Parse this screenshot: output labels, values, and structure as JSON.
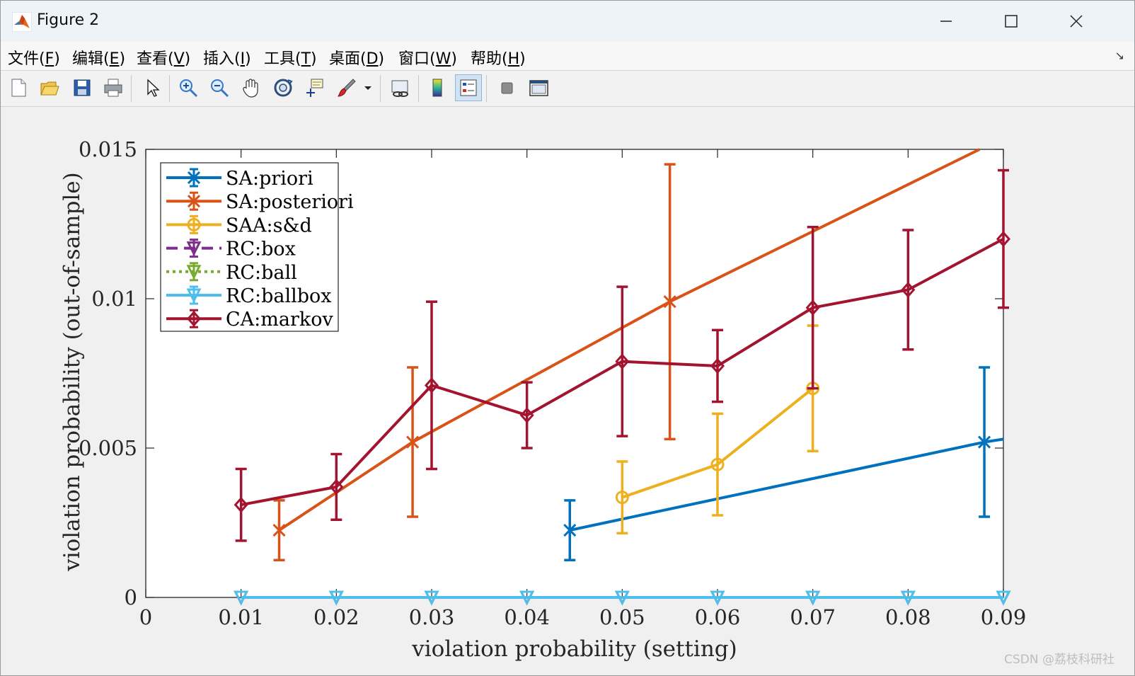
{
  "window": {
    "title": "Figure 2"
  },
  "menu": [
    {
      "label": "文件(",
      "key": "F",
      "end": ")"
    },
    {
      "label": "编辑(",
      "key": "E",
      "end": ")"
    },
    {
      "label": "查看(",
      "key": "V",
      "end": ")"
    },
    {
      "label": "插入(",
      "key": "I",
      "end": ")"
    },
    {
      "label": "工具(",
      "key": "T",
      "end": ")"
    },
    {
      "label": "桌面(",
      "key": "D",
      "end": ")"
    },
    {
      "label": "窗口(",
      "key": "W",
      "end": ")"
    },
    {
      "label": "帮助(",
      "key": "H",
      "end": ")"
    }
  ],
  "toolbar": {
    "icons": [
      "new-figure-icon",
      "open-file-icon",
      "save-icon",
      "print-icon",
      "select-arrow-icon",
      "zoom-in-icon",
      "zoom-out-icon",
      "pan-hand-icon",
      "rotate-3d-icon",
      "data-cursor-icon",
      "brush-icon",
      "brush-dropdown-icon",
      "link-plot-icon",
      "colorbar-icon",
      "legend-icon",
      "hide-plot-tools-icon",
      "show-plot-tools-icon"
    ]
  },
  "chart_data": {
    "type": "line",
    "xlabel": "violation probability (setting)",
    "ylabel": "violation probability (out-of-sample)",
    "xlim": [
      0,
      0.09
    ],
    "ylim": [
      0,
      0.015
    ],
    "xticks": [
      "0",
      "0.01",
      "0.02",
      "0.03",
      "0.04",
      "0.05",
      "0.06",
      "0.07",
      "0.08",
      "0.09"
    ],
    "yticks": [
      "0",
      "0.005",
      "0.01",
      "0.015"
    ],
    "legend_position": "top-left",
    "series": [
      {
        "name": "SA:priori",
        "color": "#0072BD",
        "marker": "x",
        "dash": "solid",
        "x": [
          0.0445,
          0.088,
          0.09
        ],
        "y": [
          0.00225,
          0.0052,
          0.0053
        ],
        "err": [
          0.001,
          0.0025,
          null
        ]
      },
      {
        "name": "SA:posteriori",
        "color": "#D95319",
        "marker": "x",
        "dash": "solid",
        "x": [
          0.014,
          0.028,
          0.055,
          0.0875
        ],
        "y": [
          0.00225,
          0.0052,
          0.0099,
          0.015
        ],
        "err": [
          0.001,
          0.0025,
          0.0046,
          null
        ]
      },
      {
        "name": "SAA:s&d",
        "color": "#EDB120",
        "marker": "o",
        "dash": "solid",
        "x": [
          0.05,
          0.06,
          0.07
        ],
        "y": [
          0.00335,
          0.00445,
          0.007
        ],
        "err": [
          0.0012,
          0.0017,
          0.0021
        ]
      },
      {
        "name": "RC:box",
        "color": "#7E2F8E",
        "marker": "v",
        "dash": "dashed",
        "x": [
          0.01,
          0.02,
          0.03,
          0.04,
          0.05,
          0.06,
          0.07,
          0.08,
          0.09
        ],
        "y": [
          0,
          0,
          0,
          0,
          0,
          0,
          0,
          0,
          0
        ],
        "err": null
      },
      {
        "name": "RC:ball",
        "color": "#77AC30",
        "marker": "v",
        "dash": "dotted",
        "x": [
          0.01,
          0.02,
          0.03,
          0.04,
          0.05,
          0.06,
          0.07,
          0.08,
          0.09
        ],
        "y": [
          0,
          0,
          0,
          0,
          0,
          0,
          0,
          0,
          0
        ],
        "err": null
      },
      {
        "name": "RC:ballbox",
        "color": "#4DBEEE",
        "marker": "v",
        "dash": "solid",
        "x": [
          0.01,
          0.02,
          0.03,
          0.04,
          0.05,
          0.06,
          0.07,
          0.08,
          0.09
        ],
        "y": [
          0,
          0,
          0,
          0,
          0,
          0,
          0,
          0,
          0
        ],
        "err": null
      },
      {
        "name": "CA:markov",
        "color": "#A2142F",
        "marker": "d",
        "dash": "solid",
        "x": [
          0.01,
          0.02,
          0.03,
          0.04,
          0.05,
          0.06,
          0.07,
          0.08,
          0.09
        ],
        "y": [
          0.0031,
          0.0037,
          0.0071,
          0.0061,
          0.0079,
          0.00775,
          0.0097,
          0.0103,
          0.012
        ],
        "err": [
          0.0012,
          0.0011,
          0.0028,
          0.0011,
          0.0025,
          0.0012,
          0.0027,
          0.002,
          0.0023
        ]
      }
    ]
  },
  "watermark": "CSDN @荔枝科研社"
}
